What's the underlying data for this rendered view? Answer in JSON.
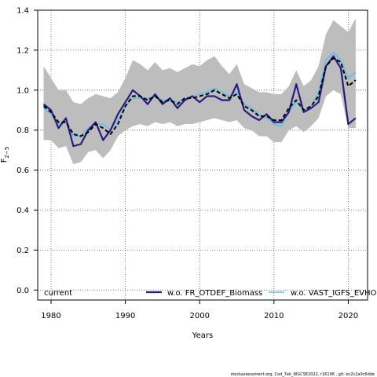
{
  "chart_data": {
    "type": "line",
    "xlabel": "Years",
    "ylabel_main": "F",
    "ylabel_sub": "2−5",
    "xlim": [
      1978.2,
      2022.6
    ],
    "ylim": [
      -0.05,
      1.4
    ],
    "x_ticks": [
      1980,
      1990,
      2000,
      2010,
      2020
    ],
    "y_ticks": [
      0.0,
      0.2,
      0.4,
      0.6,
      0.8,
      1.0,
      1.2,
      1.4
    ],
    "y_tick_labels": [
      "0.0",
      "0.2",
      "0.4",
      "0.6",
      "0.8",
      "1.0",
      "1.2",
      "1.4"
    ],
    "grid": true,
    "legend_position": "bottom",
    "band": {
      "color": "#bdbdbd",
      "x": [
        1979,
        1980,
        1981,
        1982,
        1983,
        1984,
        1985,
        1986,
        1987,
        1988,
        1989,
        1990,
        1991,
        1992,
        1993,
        1994,
        1995,
        1996,
        1997,
        1998,
        1999,
        2000,
        2001,
        2002,
        2003,
        2004,
        2005,
        2006,
        2007,
        2008,
        2009,
        2010,
        2011,
        2012,
        2013,
        2014,
        2015,
        2016,
        2017,
        2018,
        2019,
        2020,
        2021
      ],
      "upper": [
        1.12,
        1.06,
        1.0,
        1.0,
        0.94,
        0.93,
        0.96,
        0.98,
        0.97,
        0.96,
        0.99,
        1.06,
        1.15,
        1.13,
        1.1,
        1.14,
        1.1,
        1.11,
        1.09,
        1.11,
        1.13,
        1.12,
        1.15,
        1.17,
        1.12,
        1.08,
        1.13,
        1.03,
        1.01,
        0.99,
        0.99,
        0.98,
        0.98,
        1.02,
        1.1,
        1.02,
        1.05,
        1.12,
        1.28,
        1.35,
        1.32,
        1.29,
        1.36
      ],
      "lower": [
        0.75,
        0.75,
        0.71,
        0.72,
        0.63,
        0.64,
        0.69,
        0.7,
        0.66,
        0.7,
        0.77,
        0.8,
        0.82,
        0.83,
        0.82,
        0.84,
        0.83,
        0.84,
        0.82,
        0.83,
        0.83,
        0.84,
        0.85,
        0.86,
        0.85,
        0.84,
        0.85,
        0.81,
        0.8,
        0.77,
        0.77,
        0.74,
        0.74,
        0.8,
        0.82,
        0.79,
        0.82,
        0.86,
        0.97,
        1.0,
        0.98,
        0.81,
        0.81
      ]
    },
    "series": [
      {
        "name": "current",
        "color": "#000000",
        "dashed": true,
        "x": [
          1979,
          1980,
          1981,
          1982,
          1983,
          1984,
          1985,
          1986,
          1987,
          1988,
          1989,
          1990,
          1991,
          1992,
          1993,
          1994,
          1995,
          1996,
          1997,
          1998,
          1999,
          2000,
          2001,
          2002,
          2003,
          2004,
          2005,
          2006,
          2007,
          2008,
          2009,
          2010,
          2011,
          2012,
          2013,
          2014,
          2015,
          2016,
          2017,
          2018,
          2019,
          2020,
          2021
        ],
        "values": [
          0.92,
          0.89,
          0.84,
          0.84,
          0.78,
          0.77,
          0.79,
          0.83,
          0.81,
          0.78,
          0.83,
          0.92,
          0.97,
          0.97,
          0.95,
          0.97,
          0.94,
          0.95,
          0.93,
          0.96,
          0.96,
          0.97,
          0.98,
          1.0,
          0.98,
          0.96,
          0.98,
          0.92,
          0.9,
          0.87,
          0.87,
          0.85,
          0.85,
          0.91,
          0.95,
          0.9,
          0.92,
          0.97,
          1.12,
          1.16,
          1.14,
          1.02,
          1.05
        ]
      },
      {
        "name": "w.o. FR_OTDEF_Biomass",
        "color": "#2b1a80",
        "dashed": false,
        "x": [
          1979,
          1980,
          1981,
          1982,
          1983,
          1984,
          1985,
          1986,
          1987,
          1988,
          1989,
          1990,
          1991,
          1992,
          1993,
          1994,
          1995,
          1996,
          1997,
          1998,
          1999,
          2000,
          2001,
          2002,
          2003,
          2004,
          2005,
          2006,
          2007,
          2008,
          2009,
          2010,
          2011,
          2012,
          2013,
          2014,
          2015,
          2016,
          2017,
          2018,
          2019,
          2020,
          2021
        ],
        "values": [
          0.93,
          0.9,
          0.81,
          0.86,
          0.72,
          0.73,
          0.8,
          0.84,
          0.75,
          0.8,
          0.88,
          0.94,
          1.0,
          0.97,
          0.93,
          0.98,
          0.93,
          0.96,
          0.91,
          0.95,
          0.97,
          0.94,
          0.97,
          0.97,
          0.95,
          0.95,
          1.03,
          0.9,
          0.87,
          0.85,
          0.88,
          0.84,
          0.84,
          0.89,
          1.03,
          0.89,
          0.91,
          0.94,
          1.12,
          1.17,
          1.11,
          0.83,
          0.86
        ]
      },
      {
        "name": "w.o. VAST_IGFS_EVHOE",
        "color": "#5bc0eb",
        "dashed": false,
        "x": [
          1979,
          1980,
          1981,
          1982,
          1983,
          1984,
          1985,
          1986,
          1987,
          1988,
          1989,
          1990,
          1991,
          1992,
          1993,
          1994,
          1995,
          1996,
          1997,
          1998,
          1999,
          2000,
          2001,
          2002,
          2003,
          2004,
          2005,
          2006,
          2007,
          2008,
          2009,
          2010,
          2011,
          2012,
          2013,
          2014,
          2015,
          2016,
          2017,
          2018,
          2019,
          2020,
          2021
        ],
        "values": [
          0.91,
          0.88,
          0.83,
          0.84,
          0.77,
          0.77,
          0.81,
          0.83,
          0.83,
          0.8,
          0.85,
          0.92,
          0.96,
          0.96,
          0.96,
          0.97,
          0.95,
          0.95,
          0.94,
          0.96,
          0.97,
          0.98,
          0.99,
          1.01,
          0.99,
          0.97,
          0.99,
          0.93,
          0.91,
          0.88,
          0.86,
          0.83,
          0.82,
          0.89,
          0.94,
          0.9,
          0.92,
          0.99,
          1.15,
          1.19,
          1.15,
          1.06,
          1.09
        ]
      }
    ],
    "footer": "stockassessment.org, Cod_7ek_WGCSE2022, r16196 , git: ec2c2a0c6dde"
  }
}
